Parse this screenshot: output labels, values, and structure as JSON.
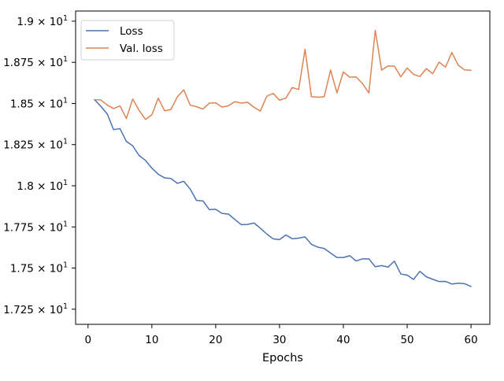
{
  "chart_data": {
    "type": "line",
    "title": "",
    "xlabel": "Epochs",
    "ylabel": "",
    "xlim": [
      -1.95,
      62.95
    ],
    "ylim": [
      17.1582,
      19.0617
    ],
    "grid": false,
    "legend_position": "top-left",
    "xticks": [
      {
        "value": 0,
        "label": "0"
      },
      {
        "value": 10,
        "label": "10"
      },
      {
        "value": 20,
        "label": "20"
      },
      {
        "value": 30,
        "label": "30"
      },
      {
        "value": 40,
        "label": "40"
      },
      {
        "value": 50,
        "label": "50"
      },
      {
        "value": 60,
        "label": "60"
      }
    ],
    "yticks": [
      {
        "value": 17.25,
        "mantissa": "1.725",
        "base": "× 10",
        "exp": "1"
      },
      {
        "value": 17.5,
        "mantissa": "1.75",
        "base": "× 10",
        "exp": "1"
      },
      {
        "value": 17.75,
        "mantissa": "1.775",
        "base": "× 10",
        "exp": "1"
      },
      {
        "value": 18.0,
        "mantissa": "1.8",
        "base": "× 10",
        "exp": "1"
      },
      {
        "value": 18.25,
        "mantissa": "1.825",
        "base": "× 10",
        "exp": "1"
      },
      {
        "value": 18.5,
        "mantissa": "1.85",
        "base": "× 10",
        "exp": "1"
      },
      {
        "value": 18.75,
        "mantissa": "1.875",
        "base": "× 10",
        "exp": "1"
      },
      {
        "value": 19.0,
        "mantissa": "1.9",
        "base": "× 10",
        "exp": "1"
      }
    ],
    "x": [
      1,
      2,
      3,
      4,
      5,
      6,
      7,
      8,
      9,
      10,
      11,
      12,
      13,
      14,
      15,
      16,
      17,
      18,
      19,
      20,
      21,
      22,
      23,
      24,
      25,
      26,
      27,
      28,
      29,
      30,
      31,
      32,
      33,
      34,
      35,
      36,
      37,
      38,
      39,
      40,
      41,
      42,
      43,
      44,
      45,
      46,
      47,
      48,
      49,
      50,
      51,
      52,
      53,
      54,
      55,
      56,
      57,
      58,
      59,
      60
    ],
    "series": [
      {
        "name": "Loss",
        "color": "#4c72b0",
        "values": [
          18.523,
          18.483,
          18.437,
          18.341,
          18.347,
          18.27,
          18.242,
          18.184,
          18.154,
          18.107,
          18.07,
          18.048,
          18.044,
          18.015,
          18.027,
          17.98,
          17.911,
          17.908,
          17.855,
          17.857,
          17.832,
          17.828,
          17.795,
          17.764,
          17.765,
          17.774,
          17.742,
          17.707,
          17.678,
          17.673,
          17.701,
          17.678,
          17.682,
          17.689,
          17.644,
          17.627,
          17.619,
          17.591,
          17.564,
          17.564,
          17.575,
          17.543,
          17.556,
          17.556,
          17.508,
          17.515,
          17.506,
          17.542,
          17.464,
          17.457,
          17.431,
          17.48,
          17.447,
          17.432,
          17.418,
          17.419,
          17.403,
          17.408,
          17.405,
          17.388
        ]
      },
      {
        "name": "Val. loss",
        "color": "#dd8452",
        "values": [
          18.523,
          18.521,
          18.491,
          18.469,
          18.485,
          18.409,
          18.527,
          18.458,
          18.403,
          18.431,
          18.532,
          18.455,
          18.464,
          18.541,
          18.583,
          18.49,
          18.48,
          18.466,
          18.502,
          18.504,
          18.478,
          18.486,
          18.511,
          18.502,
          18.507,
          18.477,
          18.454,
          18.544,
          18.561,
          18.52,
          18.533,
          18.597,
          18.585,
          18.829,
          18.541,
          18.538,
          18.541,
          18.703,
          18.565,
          18.691,
          18.66,
          18.661,
          18.621,
          18.564,
          18.944,
          18.703,
          18.728,
          18.727,
          18.662,
          18.716,
          18.677,
          18.664,
          18.712,
          18.681,
          18.751,
          18.721,
          18.809,
          18.733,
          18.704,
          18.702
        ]
      }
    ]
  }
}
